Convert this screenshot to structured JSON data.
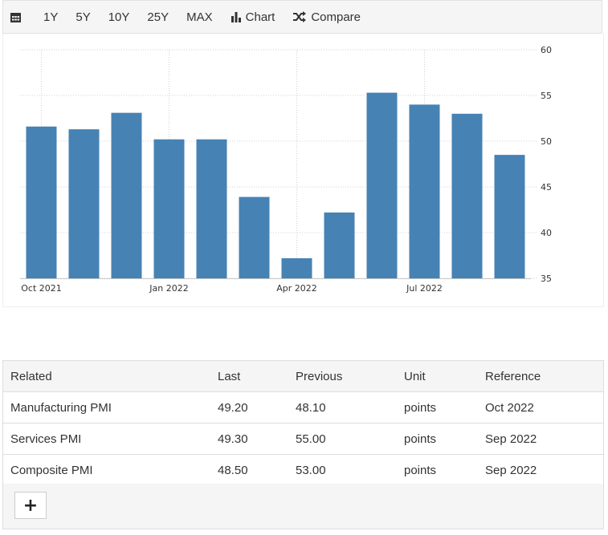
{
  "toolbar": {
    "calendar_icon": "calendar-icon",
    "ranges": [
      "1Y",
      "5Y",
      "10Y",
      "25Y",
      "MAX"
    ],
    "chart_label": "Chart",
    "compare_label": "Compare"
  },
  "chart_data": {
    "type": "bar",
    "categories": [
      "Oct 2021",
      "Nov 2021",
      "Dec 2021",
      "Jan 2022",
      "Feb 2022",
      "Mar 2022",
      "Apr 2022",
      "May 2022",
      "Jun 2022",
      "Jul 2022",
      "Aug 2022",
      "Sep 2022"
    ],
    "values": [
      51.6,
      51.3,
      53.1,
      50.2,
      50.2,
      43.9,
      37.2,
      42.2,
      55.3,
      54.0,
      53.0,
      48.5
    ],
    "x_tick_labels": [
      {
        "category": "Oct 2021",
        "label": "Oct 2021"
      },
      {
        "category": "Jan 2022",
        "label": "Jan 2022"
      },
      {
        "category": "Apr 2022",
        "label": "Apr 2022"
      },
      {
        "category": "Jul 2022",
        "label": "Jul 2022"
      }
    ],
    "y_ticks": [
      35,
      40,
      45,
      50,
      55,
      60
    ],
    "ylim": [
      35,
      60
    ],
    "y_axis_side": "right",
    "bar_color": "#4682b4",
    "grid": true
  },
  "related": {
    "headers": [
      "Related",
      "Last",
      "Previous",
      "Unit",
      "Reference"
    ],
    "rows": [
      [
        "Manufacturing PMI",
        "49.20",
        "48.10",
        "points",
        "Oct 2022"
      ],
      [
        "Services PMI",
        "49.30",
        "55.00",
        "points",
        "Sep 2022"
      ],
      [
        "Composite PMI",
        "48.50",
        "53.00",
        "points",
        "Sep 2022"
      ]
    ]
  },
  "footer": {
    "add_label": "+"
  }
}
